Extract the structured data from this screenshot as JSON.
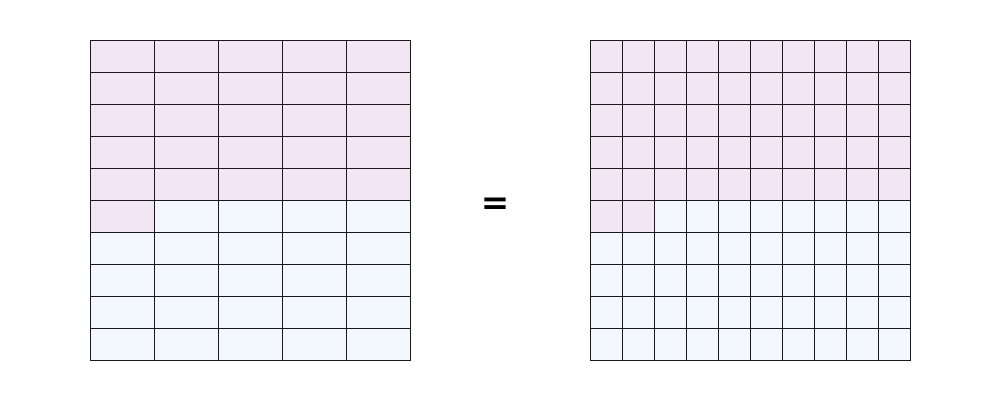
{
  "equation": {
    "symbol": "=",
    "left_grid": {
      "rows": 10,
      "cols": 5,
      "shaded_count": 26
    },
    "right_grid": {
      "rows": 10,
      "cols": 10,
      "shaded_count": 52
    }
  },
  "colors": {
    "shaded": "#f2e6f4",
    "unshaded": "#f3f8fe",
    "line": "#1a1a1a"
  }
}
